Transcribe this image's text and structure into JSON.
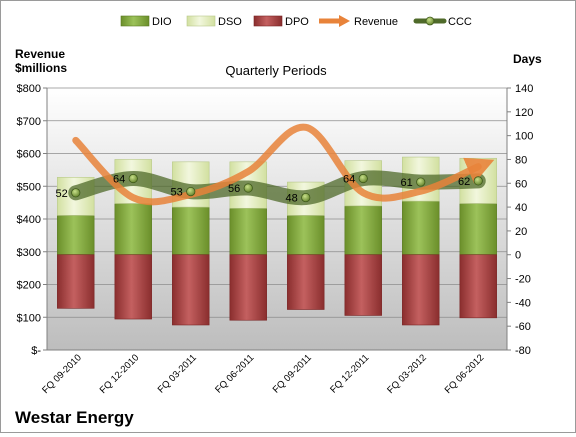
{
  "chart_data": {
    "type": "bar",
    "title": "Quarterly Periods",
    "footer_title": "Westar Energy",
    "left_axis_label_line1": "Revenue",
    "left_axis_label_line2": "$millions",
    "right_axis_label": "Days",
    "categories": [
      "FQ 09-2010",
      "FQ 12-2010",
      "FQ 03-2011",
      "FQ 06-2011",
      "FQ 09-2011",
      "FQ 12-2011",
      "FQ 03-2012",
      "FQ 06-2012"
    ],
    "left_axis": {
      "min": 0,
      "max": 800,
      "step": 100,
      "tick_labels": [
        "$-",
        "$100",
        "$200",
        "$300",
        "$400",
        "$500",
        "$600",
        "$700",
        "$800"
      ]
    },
    "right_axis": {
      "min": -80,
      "max": 140,
      "step": 20,
      "tick_labels": [
        "-80",
        "-60",
        "-40",
        "-20",
        "0",
        "20",
        "40",
        "60",
        "80",
        "100",
        "120",
        "140"
      ]
    },
    "grid": "horizontal",
    "legend_position": "top",
    "series": [
      {
        "name": "DIO",
        "axis": "right",
        "kind": "stacked-bar",
        "color": "#7fa33a",
        "values": [
          33,
          43,
          40,
          39,
          33,
          41,
          45,
          43
        ]
      },
      {
        "name": "DSO",
        "axis": "right",
        "kind": "stacked-bar",
        "color": "#dfe9b8",
        "values": [
          32,
          37,
          38,
          39,
          28,
          38,
          37,
          38
        ]
      },
      {
        "name": "DPO",
        "axis": "right",
        "kind": "bar-negative",
        "color": "#a03c3c",
        "values": [
          -45,
          -54,
          -59,
          -55,
          -46,
          -51,
          -59,
          -53
        ]
      },
      {
        "name": "Revenue",
        "axis": "left",
        "kind": "line",
        "color": "#e8833a",
        "values": [
          640,
          465,
          475,
          545,
          680,
          480,
          485,
          560
        ]
      },
      {
        "name": "CCC",
        "axis": "right",
        "kind": "line-markers",
        "color": "#556b2f",
        "values": [
          52,
          64,
          53,
          56,
          48,
          64,
          61,
          62
        ]
      }
    ]
  }
}
